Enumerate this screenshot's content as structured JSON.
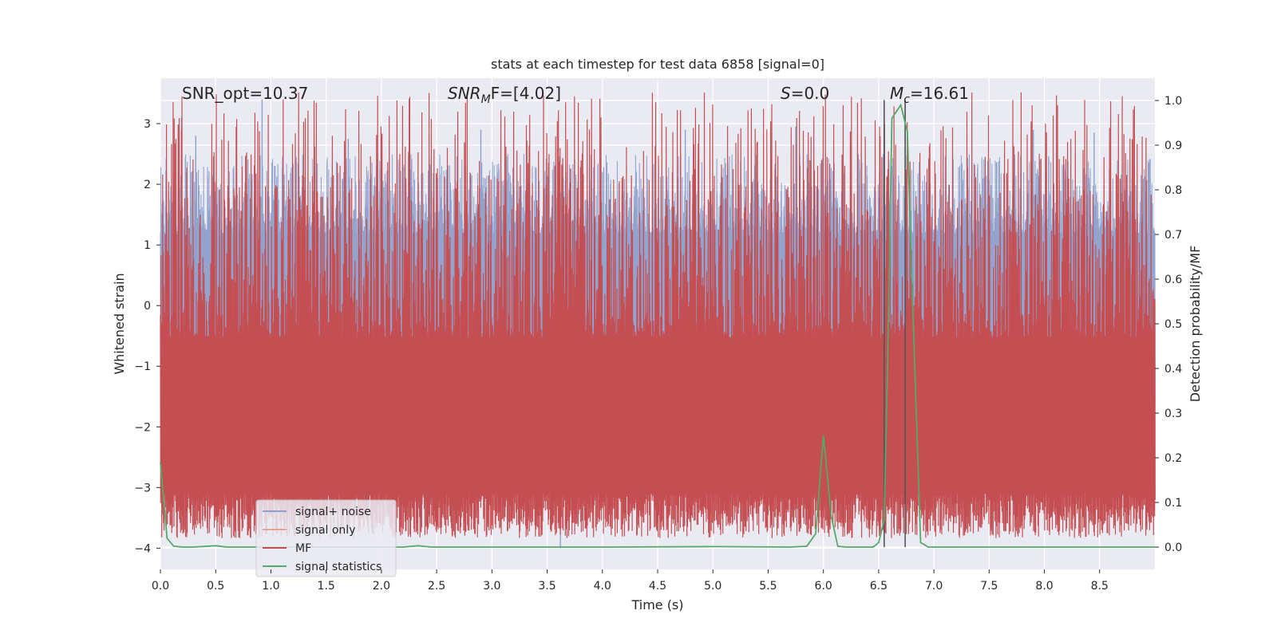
{
  "chart_data": {
    "type": "line",
    "title": "stats at each timestep for test data 6858 [signal=0]",
    "xlabel": "Time (s)",
    "ylabel_left": "Whitened strain",
    "ylabel_right": "Detection probability/MF",
    "xlim": [
      0.0,
      9.0
    ],
    "ylim_left": [
      -4.35,
      3.75
    ],
    "ylim_right": [
      -0.05,
      1.05
    ],
    "xticks": [
      "0.0",
      "0.5",
      "1.0",
      "1.5",
      "2.0",
      "2.5",
      "3.0",
      "3.5",
      "4.0",
      "4.5",
      "5.0",
      "5.5",
      "6.0",
      "6.5",
      "7.0",
      "7.5",
      "8.0",
      "8.5"
    ],
    "yticks_left": [
      "3",
      "2",
      "1",
      "0",
      "−1",
      "−2",
      "−3",
      "−4"
    ],
    "yticks_right": [
      "1.0",
      "0.9",
      "0.8",
      "0.7",
      "0.6",
      "0.5",
      "0.4",
      "0.3",
      "0.2",
      "0.1",
      "0.0"
    ],
    "grid": true,
    "legend_position": "lower-left",
    "annotations": {
      "snr_opt": "SNR_opt=10.37",
      "snr_mf_main": "SNR",
      "snr_mf_sub": "M",
      "snr_mf_rest": "F=[4.02]",
      "s_italic": "S",
      "s_rest": "=0.0",
      "mc_italic": "M",
      "mc_sub": "c",
      "mc_rest": "=16.61"
    },
    "vertical_markers_x": [
      6.55,
      6.74
    ],
    "series": [
      {
        "name": "signal+ noise",
        "color": "#8da0cb",
        "axis": "left",
        "envelope_typical_upper": 1.2,
        "envelope_typical_lower": -1.6,
        "spikes": [
          {
            "x": 0.19,
            "y": 3.1
          },
          {
            "x": 0.92,
            "y": 3.4
          },
          {
            "x": 0.32,
            "y": 2.8
          },
          {
            "x": 1.7,
            "y": 2.75
          },
          {
            "x": 2.9,
            "y": 2.9
          },
          {
            "x": 3.6,
            "y": 2.6
          },
          {
            "x": 4.75,
            "y": 2.9
          },
          {
            "x": 5.4,
            "y": 2.7
          },
          {
            "x": 5.75,
            "y": 2.95
          },
          {
            "x": 6.55,
            "y": 3.4
          },
          {
            "x": 6.74,
            "y": 3.4
          },
          {
            "x": 7.9,
            "y": 2.9
          },
          {
            "x": 8.45,
            "y": 2.85
          },
          {
            "x": 0.45,
            "y": -3.15
          },
          {
            "x": 1.85,
            "y": -3.0
          },
          {
            "x": 2.35,
            "y": -3.25
          },
          {
            "x": 3.45,
            "y": -3.25
          },
          {
            "x": 3.62,
            "y": -4.0
          },
          {
            "x": 5.05,
            "y": -3.0
          },
          {
            "x": 6.75,
            "y": -3.0
          },
          {
            "x": 7.95,
            "y": -3.1
          },
          {
            "x": 8.65,
            "y": -3.05
          },
          {
            "x": 8.85,
            "y": -3.25
          }
        ]
      },
      {
        "name": "signal only",
        "color": "#e8a58a",
        "axis": "left"
      },
      {
        "name": "MF",
        "color": "#c44e52",
        "axis": "left",
        "band_lower": 0.02,
        "band_upper": 0.55
      },
      {
        "name": "signal statistics",
        "color": "#55a868",
        "axis": "right",
        "x": [
          0.0,
          0.06,
          0.12,
          0.2,
          0.3,
          0.5,
          0.6,
          1.0,
          2.0,
          2.2,
          2.33,
          2.45,
          2.6,
          3.0,
          4.0,
          5.0,
          5.7,
          5.85,
          5.93,
          6.0,
          6.07,
          6.13,
          6.2,
          6.45,
          6.5,
          6.55,
          6.58,
          6.62,
          6.7,
          6.76,
          6.8,
          6.88,
          6.95,
          7.0,
          8.0,
          9.0
        ],
        "y": [
          0.19,
          0.02,
          0.002,
          0.0,
          0.0,
          0.003,
          0.0,
          0.0,
          0.0,
          0.0,
          0.003,
          0.0,
          0.0,
          0.0,
          0.0,
          0.001,
          0.0,
          0.002,
          0.03,
          0.25,
          0.07,
          0.002,
          0.0,
          0.0,
          0.01,
          0.06,
          0.4,
          0.96,
          0.99,
          0.93,
          0.6,
          0.01,
          0.0,
          0.0,
          0.0,
          0.0
        ]
      }
    ]
  }
}
